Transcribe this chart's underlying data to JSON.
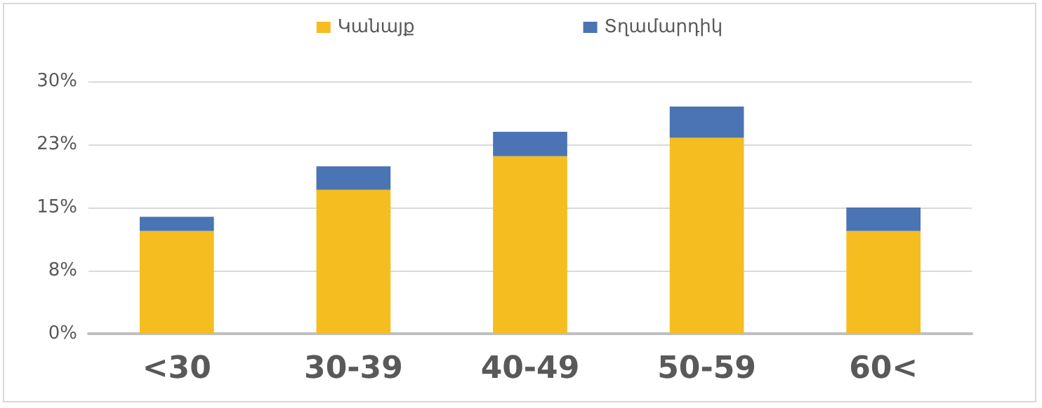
{
  "chart_data": {
    "type": "bar",
    "stacked": true,
    "categories": [
      "<30",
      "30-39",
      "40-49",
      "50-59",
      "60<"
    ],
    "series": [
      {
        "name": "Կանայք",
        "color": "#f5bd1f",
        "values": [
          12.2,
          17.1,
          21.1,
          23.3,
          12.2
        ]
      },
      {
        "name": "Տղամարդիկ",
        "color": "#4a74b3",
        "values": [
          1.7,
          2.8,
          2.9,
          3.7,
          2.8
        ]
      }
    ],
    "ylim": [
      0,
      30
    ],
    "yticks": [
      {
        "value": 0,
        "label": "0%"
      },
      {
        "value": 7.5,
        "label": "8%"
      },
      {
        "value": 15,
        "label": "15%"
      },
      {
        "value": 22.5,
        "label": "23%"
      },
      {
        "value": 30,
        "label": "30%"
      }
    ],
    "grid": "y",
    "legend": "top"
  }
}
